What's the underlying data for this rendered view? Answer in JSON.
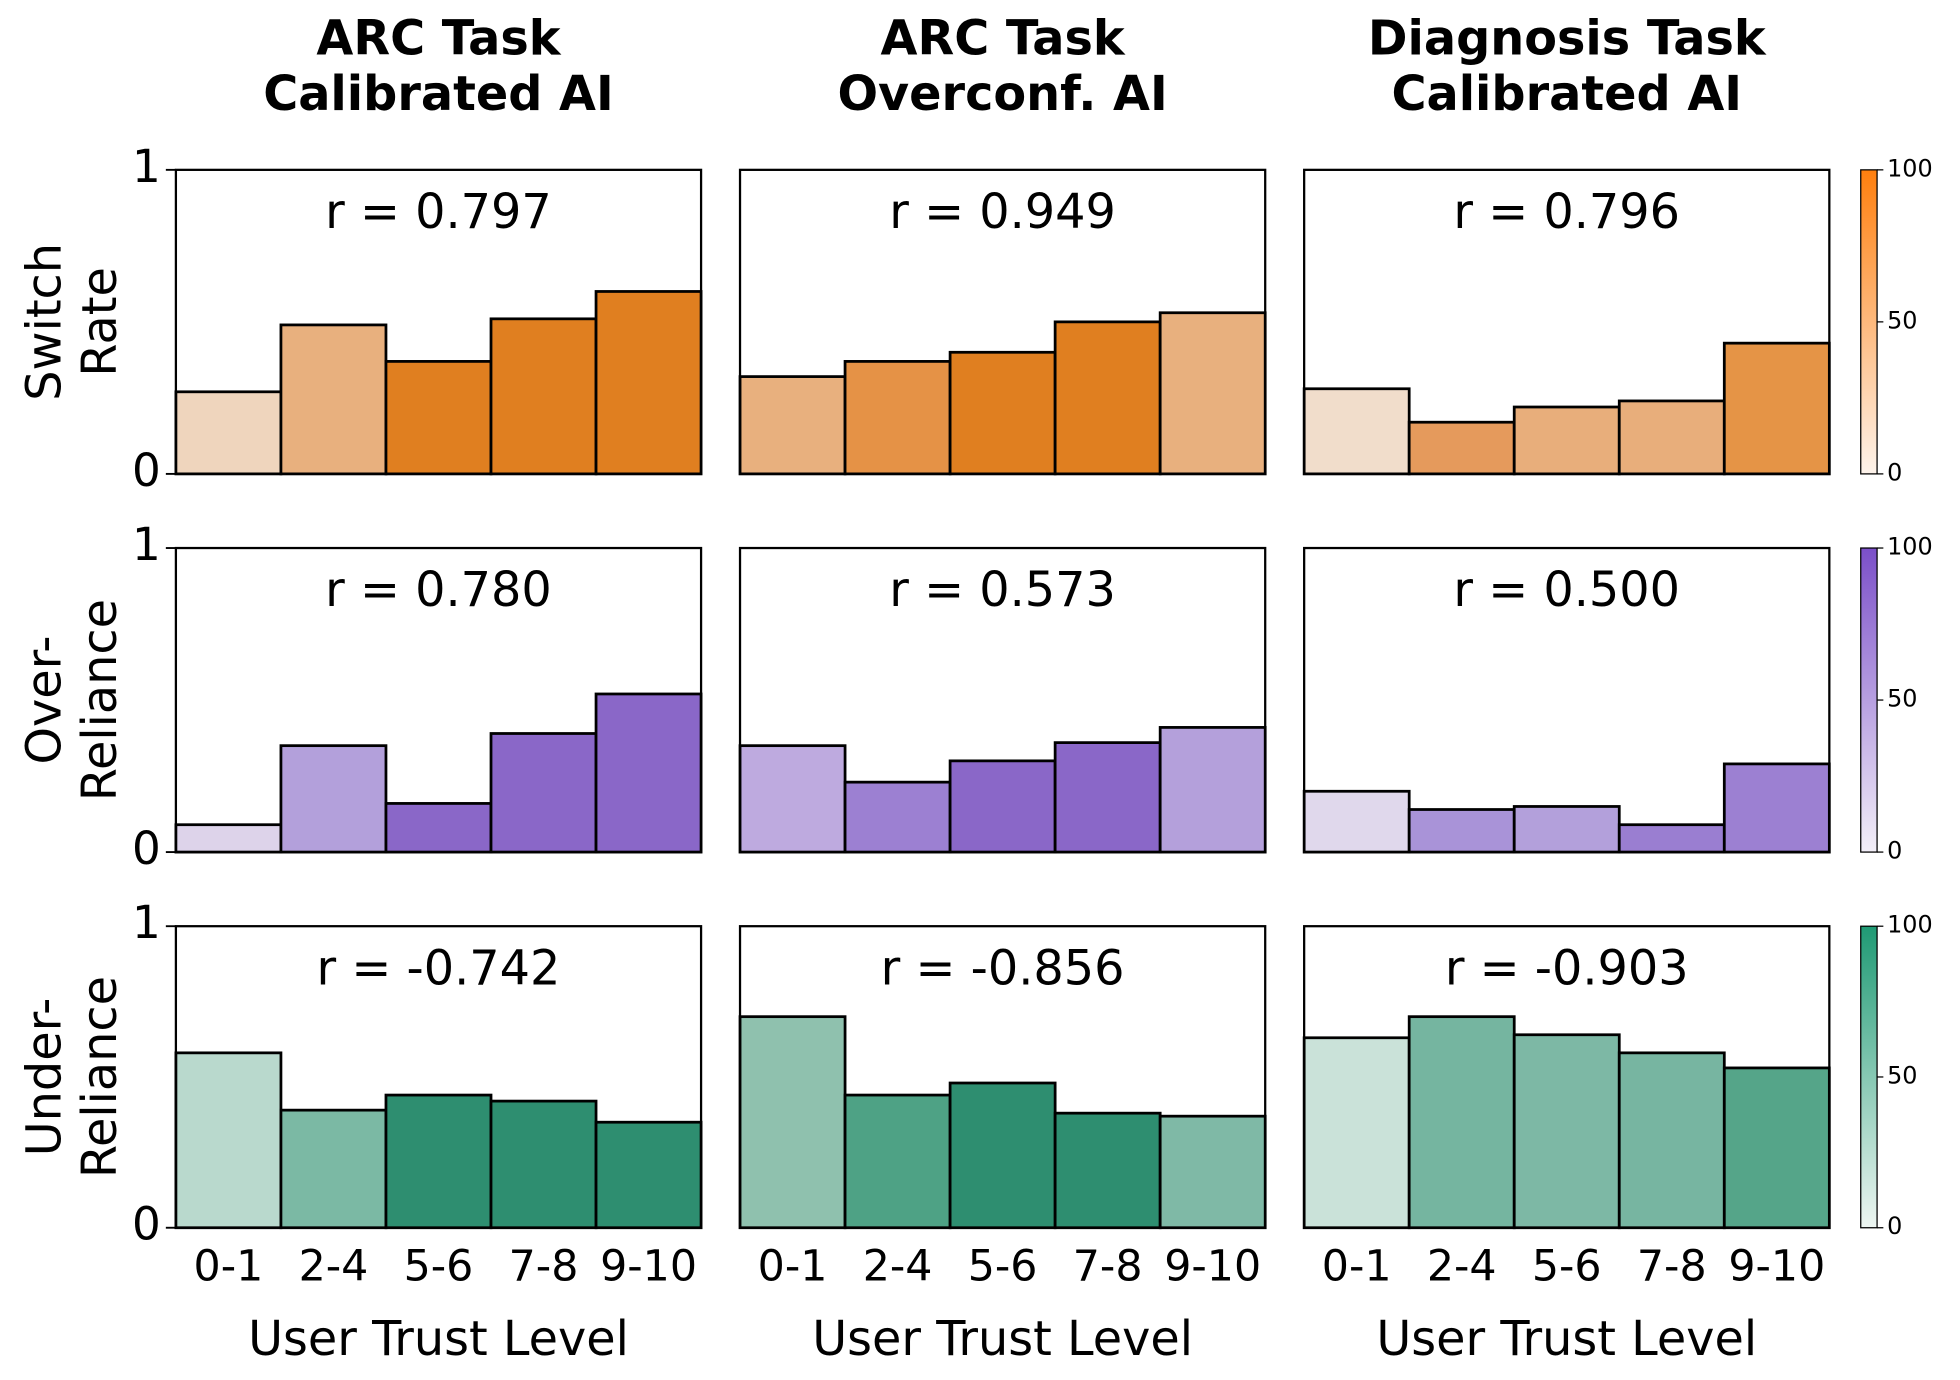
{
  "chart_data": [
    {
      "type": "bar",
      "title": [
        "ARC Task",
        "Calibrated AI"
      ],
      "ylabel": [
        "Switch",
        "Rate"
      ],
      "annotation": "r = 0.797",
      "values": [
        0.27,
        0.49,
        0.37,
        0.51,
        0.6
      ],
      "colors": [
        "#efd5bd",
        "#e8b07e",
        "#e07f20",
        "#e07f20",
        "#e07f20"
      ],
      "ylim": [
        0,
        1
      ],
      "yticks": [
        0,
        1
      ]
    },
    {
      "type": "bar",
      "title": [
        "ARC Task",
        "Overconf. AI"
      ],
      "annotation": "r = 0.949",
      "values": [
        0.32,
        0.37,
        0.4,
        0.5,
        0.53
      ],
      "colors": [
        "#e8b07e",
        "#e59246",
        "#e07f20",
        "#e07f20",
        "#e8b07e"
      ],
      "ylim": [
        0,
        1
      ]
    },
    {
      "type": "bar",
      "title": [
        "Diagnosis Task",
        "Calibrated AI"
      ],
      "annotation": "r = 0.796",
      "values": [
        0.28,
        0.17,
        0.22,
        0.24,
        0.43
      ],
      "colors": [
        "#f1ddcb",
        "#e59a5c",
        "#e8ae7b",
        "#e8ae7b",
        "#e59446"
      ],
      "ylim": [
        0,
        1
      ],
      "colorbar": {
        "lim": [
          0,
          100
        ],
        "ticks": [
          0,
          50,
          100
        ],
        "colors": [
          "#fdf3eb",
          "#ff7f0e"
        ]
      }
    },
    {
      "type": "bar",
      "ylabel": [
        "Over-",
        "Reliance"
      ],
      "annotation": "r = 0.780",
      "values": [
        0.09,
        0.35,
        0.16,
        0.39,
        0.52
      ],
      "colors": [
        "#ddd3ea",
        "#b3a0db",
        "#8a67c8",
        "#8a67c8",
        "#8a67c8"
      ],
      "ylim": [
        0,
        1
      ],
      "yticks": [
        0,
        1
      ]
    },
    {
      "type": "bar",
      "annotation": "r = 0.573",
      "values": [
        0.35,
        0.23,
        0.3,
        0.36,
        0.41
      ],
      "colors": [
        "#beaadf",
        "#9c80d2",
        "#8a67c8",
        "#8a67c8",
        "#b4a0db"
      ],
      "ylim": [
        0,
        1
      ]
    },
    {
      "type": "bar",
      "annotation": "r = 0.500",
      "values": [
        0.2,
        0.14,
        0.15,
        0.09,
        0.29
      ],
      "colors": [
        "#e0d8ec",
        "#a993d8",
        "#b3a0db",
        "#9a7ed1",
        "#9c80d2"
      ],
      "ylim": [
        0,
        1
      ],
      "colorbar": {
        "lim": [
          0,
          100
        ],
        "ticks": [
          0,
          50,
          100
        ],
        "colors": [
          "#f3eff8",
          "#7b4fc9"
        ]
      }
    },
    {
      "type": "bar",
      "ylabel": [
        "Under-",
        "Reliance"
      ],
      "annotation": "r = -0.742",
      "xlabel": "User Trust Level",
      "categories": [
        "0-1",
        "2-4",
        "5-6",
        "7-8",
        "9-10"
      ],
      "values": [
        0.58,
        0.39,
        0.44,
        0.42,
        0.35
      ],
      "colors": [
        "#b9d9cd",
        "#7bb9a4",
        "#2e8e70",
        "#2e8e70",
        "#2e8e70"
      ],
      "ylim": [
        0,
        1
      ],
      "yticks": [
        0,
        1
      ]
    },
    {
      "type": "bar",
      "annotation": "r = -0.856",
      "xlabel": "User Trust Level",
      "categories": [
        "0-1",
        "2-4",
        "5-6",
        "7-8",
        "9-10"
      ],
      "values": [
        0.7,
        0.44,
        0.48,
        0.38,
        0.37
      ],
      "colors": [
        "#8fc1ae",
        "#4ea285",
        "#2e8e70",
        "#2e8e70",
        "#7fb9a6"
      ],
      "ylim": [
        0,
        1
      ]
    },
    {
      "type": "bar",
      "annotation": "r = -0.903",
      "xlabel": "User Trust Level",
      "categories": [
        "0-1",
        "2-4",
        "5-6",
        "7-8",
        "9-10"
      ],
      "values": [
        0.63,
        0.7,
        0.64,
        0.58,
        0.53
      ],
      "colors": [
        "#cae2d9",
        "#75b5a0",
        "#7db8a5",
        "#77b5a1",
        "#55a589"
      ],
      "ylim": [
        0,
        1
      ],
      "colorbar": {
        "lim": [
          0,
          100
        ],
        "ticks": [
          0,
          50,
          100
        ],
        "colors": [
          "#eef6f2",
          "#1f9a74"
        ]
      }
    }
  ]
}
